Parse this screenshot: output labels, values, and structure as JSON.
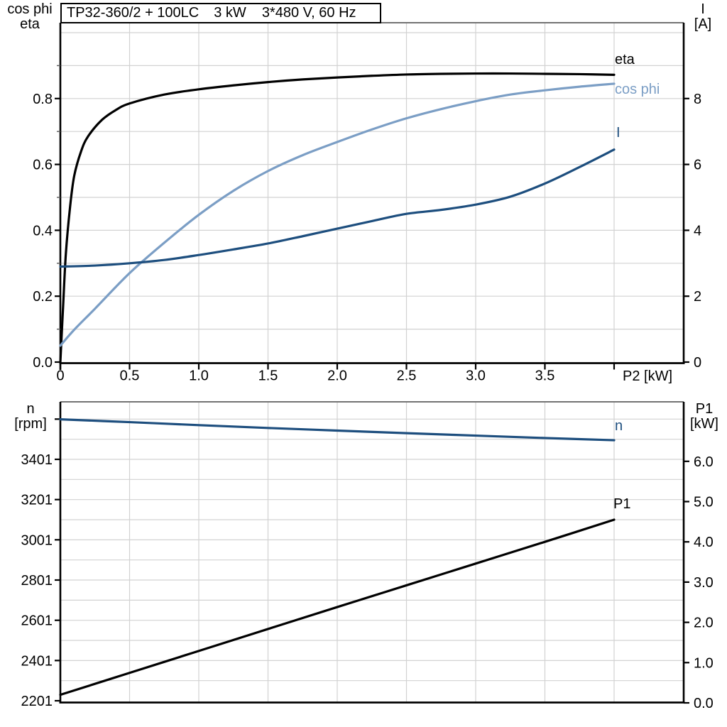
{
  "title_box": {
    "model": "TP32-360/2 + 100LC",
    "power": "3 kW",
    "voltage": "3*480 V, 60 Hz"
  },
  "colors": {
    "black": "#000000",
    "light_blue": "#7b9ec5",
    "dark_blue": "#1d4e7e",
    "grid": "#d2d2d2",
    "frame": "#737373",
    "tick_minor": "#595959",
    "axis": "#000000"
  },
  "chart_data": [
    {
      "type": "line",
      "title": "TP32-360/2 + 100LC 3 kW 3*480 V, 60 Hz",
      "xlabel": "P2 [kW]",
      "ylabel_left_lines": [
        "cos phi",
        "eta"
      ],
      "ylabel_right_lines": [
        "I",
        "[A]"
      ],
      "xlim": [
        0,
        4.5
      ],
      "ylim_left": [
        0,
        1.03
      ],
      "ylim_right": [
        0,
        10.3
      ],
      "grid": "on",
      "legend_position": "right-inline",
      "xticks": {
        "values": [
          0,
          0.5,
          1,
          1.5,
          2,
          2.5,
          3,
          3.5
        ],
        "labels": [
          "0",
          "0.5",
          "1.0",
          "1.5",
          "2.0",
          "2.5",
          "3.0",
          "3.5"
        ],
        "unlabeled": [
          4
        ]
      },
      "yticks_left": {
        "values": [
          0,
          0.2,
          0.4,
          0.6,
          0.8
        ],
        "labels": [
          "0.0",
          "0.2",
          "0.4",
          "0.6",
          "0.8"
        ],
        "minor": [
          0.1,
          0.3,
          0.5,
          0.7,
          0.9
        ]
      },
      "yticks_right": {
        "values": [
          0,
          2,
          4,
          6,
          8
        ],
        "labels": [
          "0",
          "2",
          "4",
          "6",
          "8"
        ]
      },
      "grid_x": [
        0.5,
        1,
        1.5,
        2,
        2.5,
        3,
        3.5,
        4
      ],
      "grid_y_left": [
        0.1,
        0.2,
        0.3,
        0.4,
        0.5,
        0.6,
        0.7,
        0.8,
        0.9,
        1.0
      ],
      "series": [
        {
          "name": "eta",
          "axis": "left",
          "color": "#000000",
          "points": [
            [
              0,
              0
            ],
            [
              0.02,
              0.17
            ],
            [
              0.04,
              0.33
            ],
            [
              0.07,
              0.47
            ],
            [
              0.1,
              0.565
            ],
            [
              0.15,
              0.64
            ],
            [
              0.2,
              0.685
            ],
            [
              0.3,
              0.735
            ],
            [
              0.4,
              0.765
            ],
            [
              0.5,
              0.785
            ],
            [
              0.75,
              0.812
            ],
            [
              1,
              0.828
            ],
            [
              1.25,
              0.84
            ],
            [
              1.5,
              0.85
            ],
            [
              1.75,
              0.858
            ],
            [
              2,
              0.864
            ],
            [
              2.25,
              0.869
            ],
            [
              2.5,
              0.873
            ],
            [
              2.75,
              0.875
            ],
            [
              3,
              0.876
            ],
            [
              3.25,
              0.876
            ],
            [
              3.5,
              0.875
            ],
            [
              3.75,
              0.874
            ],
            [
              4,
              0.872
            ]
          ]
        },
        {
          "name": "cos phi",
          "axis": "left",
          "color": "#7b9ec5",
          "points": [
            [
              0,
              0.05
            ],
            [
              0.1,
              0.098
            ],
            [
              0.25,
              0.162
            ],
            [
              0.5,
              0.27
            ],
            [
              0.75,
              0.362
            ],
            [
              1,
              0.447
            ],
            [
              1.25,
              0.52
            ],
            [
              1.5,
              0.58
            ],
            [
              1.75,
              0.628
            ],
            [
              2,
              0.668
            ],
            [
              2.25,
              0.706
            ],
            [
              2.5,
              0.74
            ],
            [
              2.75,
              0.768
            ],
            [
              3,
              0.792
            ],
            [
              3.25,
              0.812
            ],
            [
              3.5,
              0.825
            ],
            [
              3.75,
              0.836
            ],
            [
              4,
              0.845
            ]
          ]
        },
        {
          "name": "I",
          "axis": "right",
          "color": "#1d4e7e",
          "points": [
            [
              0,
              2.9
            ],
            [
              0.25,
              2.93
            ],
            [
              0.5,
              3.0
            ],
            [
              0.75,
              3.1
            ],
            [
              1,
              3.25
            ],
            [
              1.25,
              3.42
            ],
            [
              1.5,
              3.6
            ],
            [
              1.75,
              3.82
            ],
            [
              2,
              4.05
            ],
            [
              2.25,
              4.28
            ],
            [
              2.5,
              4.5
            ],
            [
              2.75,
              4.62
            ],
            [
              3,
              4.78
            ],
            [
              3.25,
              5.02
            ],
            [
              3.5,
              5.42
            ],
            [
              3.75,
              5.92
            ],
            [
              4,
              6.45
            ]
          ]
        }
      ]
    },
    {
      "type": "line",
      "title": "",
      "xlabel": "",
      "ylabel_left_lines": [
        "n",
        "[rpm]"
      ],
      "ylabel_right_lines": [
        "P1",
        "[kW]"
      ],
      "xlim": [
        0,
        4.5
      ],
      "ylim_left_rpm": [
        2190,
        3690
      ],
      "ylim_right_kw": [
        0,
        7.5
      ],
      "grid": "on",
      "yticks_left": {
        "values": [
          3401,
          3201,
          3001,
          2801,
          2601,
          2401,
          2201
        ],
        "labels": [
          "3401",
          "3201",
          "3001",
          "2801",
          "2601",
          "2401",
          "2201"
        ],
        "unlabeled": [
          3601
        ]
      },
      "yticks_right": {
        "values": [
          6,
          5,
          4,
          3,
          2,
          1,
          0
        ],
        "labels": [
          "6.0",
          "5.0",
          "4.0",
          "3.0",
          "2.0",
          "1.0",
          "0.0"
        ]
      },
      "grid_x": [
        0.5,
        1,
        1.5,
        2,
        2.5,
        3,
        3.5,
        4
      ],
      "grid_y_rpm": [
        2301,
        2401,
        2501,
        2601,
        2701,
        2801,
        2901,
        3001,
        3101,
        3201,
        3301,
        3401,
        3501,
        3601
      ],
      "series": [
        {
          "name": "n",
          "axis": "rpm",
          "color": "#1d4e7e",
          "points": [
            [
              0,
              3600
            ],
            [
              0.5,
              3586
            ],
            [
              1,
              3571
            ],
            [
              1.5,
              3557
            ],
            [
              2,
              3544
            ],
            [
              2.5,
              3531
            ],
            [
              3,
              3519
            ],
            [
              3.5,
              3507
            ],
            [
              4,
              3496
            ]
          ]
        },
        {
          "name": "P1",
          "axis": "kw",
          "color": "#000000",
          "points": [
            [
              0,
              0.2
            ],
            [
              0.5,
              0.745
            ],
            [
              1,
              1.29
            ],
            [
              1.5,
              1.835
            ],
            [
              2,
              2.38
            ],
            [
              2.5,
              2.92
            ],
            [
              3,
              3.46
            ],
            [
              3.5,
              4.0
            ],
            [
              4,
              4.55
            ]
          ]
        }
      ]
    }
  ]
}
